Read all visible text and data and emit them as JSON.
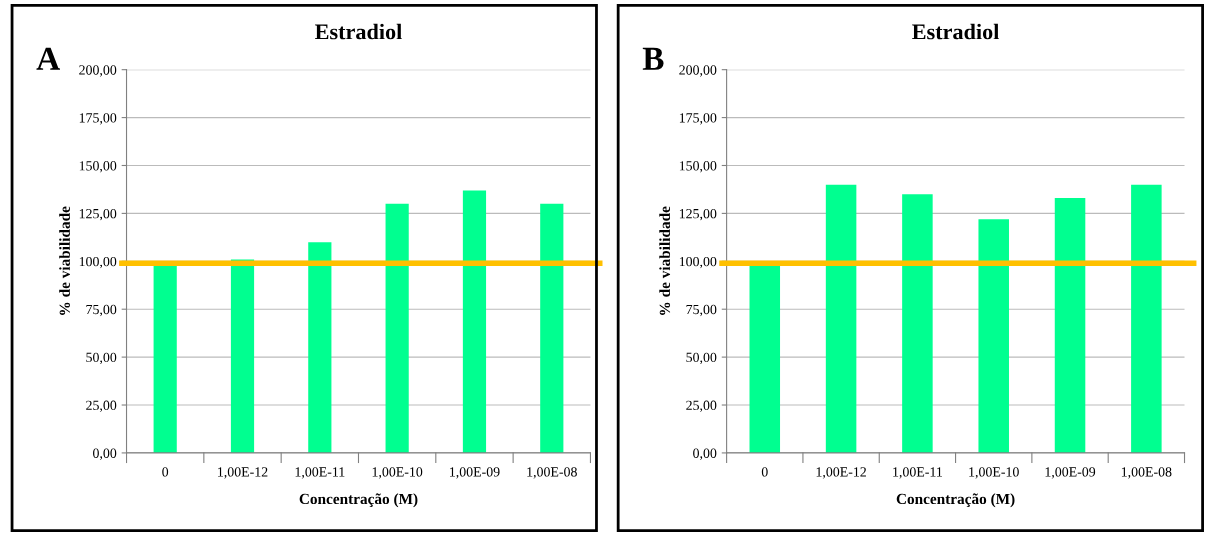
{
  "chart_data": [
    {
      "type": "bar",
      "title": "Estradiol",
      "xlabel": "Concentração (M)",
      "ylabel": "% de viabilidade",
      "annotations": [
        "A"
      ],
      "categories": [
        "0",
        "1,00E-12",
        "1,00E-11",
        "1,00E-10",
        "1,00E-09",
        "1,00E-08"
      ],
      "values": [
        99,
        101,
        110,
        130,
        137,
        130
      ],
      "color": "#00ff90",
      "ylim": [
        0,
        200
      ],
      "yticks": [
        {
          "value": 0,
          "label": "0,00"
        },
        {
          "value": 25,
          "label": "25,00"
        },
        {
          "value": 50,
          "label": "50,00"
        },
        {
          "value": 75,
          "label": "75,00"
        },
        {
          "value": 100,
          "label": "100,00"
        },
        {
          "value": 125,
          "label": "125,00"
        },
        {
          "value": 150,
          "label": "150,00"
        },
        {
          "value": 175,
          "label": "175,00"
        },
        {
          "value": 200,
          "label": "200,00"
        }
      ],
      "grid": "y",
      "ref_lines": [
        {
          "axis": "y",
          "value": 99,
          "color": "#ffc000"
        }
      ]
    },
    {
      "type": "bar",
      "title": "Estradiol",
      "xlabel": "Concentração (M)",
      "ylabel": "% de viabilidade",
      "annotations": [
        "B"
      ],
      "categories": [
        "0",
        "1,00E-12",
        "1,00E-11",
        "1,00E-10",
        "1,00E-09",
        "1,00E-08"
      ],
      "values": [
        99,
        140,
        135,
        122,
        133,
        140
      ],
      "color": "#00ff90",
      "ylim": [
        0,
        200
      ],
      "yticks": [
        {
          "value": 0,
          "label": "0,00"
        },
        {
          "value": 25,
          "label": "25,00"
        },
        {
          "value": 50,
          "label": "50,00"
        },
        {
          "value": 75,
          "label": "75,00"
        },
        {
          "value": 100,
          "label": "100,00"
        },
        {
          "value": 125,
          "label": "125,00"
        },
        {
          "value": 150,
          "label": "150,00"
        },
        {
          "value": 175,
          "label": "175,00"
        },
        {
          "value": 200,
          "label": "200,00"
        }
      ],
      "grid": "y",
      "ref_lines": [
        {
          "axis": "y",
          "value": 99,
          "color": "#ffc000"
        }
      ]
    }
  ]
}
